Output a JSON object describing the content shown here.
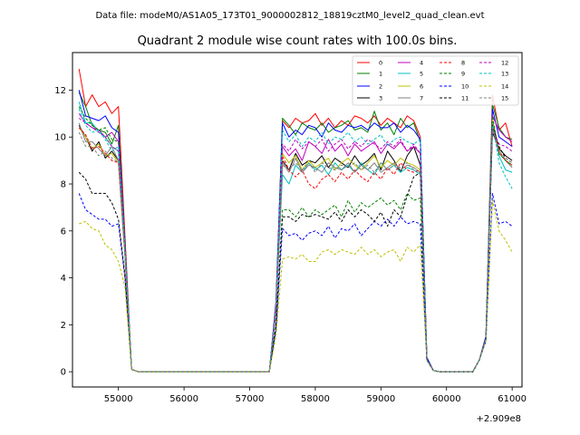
{
  "suptitle": "Data file: modeM0/AS1A05_173T01_9000002812_18819cztM0_level2_quad_clean.evt",
  "chart_data": {
    "type": "line",
    "title": "Quadrant 2 module wise count rates with 100.0s bins.",
    "xlabel": "",
    "ylabel": "",
    "x_offset_label": "+2.909e8",
    "xlim": [
      54300,
      61150
    ],
    "ylim": [
      -0.65,
      13.6
    ],
    "x_ticks": [
      55000,
      56000,
      57000,
      58000,
      59000,
      60000,
      61000
    ],
    "x_tick_labels": [
      "55000",
      "56000",
      "57000",
      "58000",
      "59000",
      "60000",
      "61000"
    ],
    "y_ticks": [
      0,
      2,
      4,
      6,
      8,
      10,
      12
    ],
    "y_tick_labels": [
      "0",
      "2",
      "4",
      "6",
      "8",
      "10",
      "12"
    ],
    "legend_position": "top-right",
    "x": [
      54400,
      54500,
      54600,
      54700,
      54800,
      54900,
      55000,
      55100,
      55200,
      55300,
      55400,
      55500,
      55600,
      55700,
      55800,
      55900,
      56000,
      56100,
      56200,
      56300,
      56400,
      56500,
      56600,
      56700,
      56800,
      56900,
      57000,
      57100,
      57200,
      57300,
      57400,
      57500,
      57600,
      57700,
      57800,
      57900,
      58000,
      58100,
      58200,
      58300,
      58400,
      58500,
      58600,
      58700,
      58800,
      58900,
      59000,
      59100,
      59200,
      59300,
      59400,
      59500,
      59600,
      59700,
      59800,
      59900,
      60000,
      60100,
      60200,
      60300,
      60400,
      60500,
      60600,
      60700,
      60800,
      60900,
      61000
    ],
    "series": [
      {
        "name": "0",
        "color": "#ff0000",
        "dash": "solid",
        "values": [
          12.9,
          11.3,
          11.8,
          11.3,
          11.5,
          11.0,
          11.3,
          5.8,
          0.1,
          0,
          0,
          0,
          0,
          0,
          0,
          0,
          0,
          0,
          0,
          0,
          0,
          0,
          0,
          0,
          0,
          0,
          0,
          0,
          0,
          0,
          3.0,
          10.7,
          10.4,
          10.8,
          10.6,
          10.7,
          11.0,
          10.5,
          10.8,
          10.4,
          10.7,
          10.5,
          10.9,
          10.8,
          10.6,
          10.9,
          10.5,
          10.8,
          10.6,
          10.4,
          10.9,
          10.7,
          10.0,
          0.6,
          0.05,
          0,
          0,
          0,
          0,
          0,
          0,
          0.5,
          1.5,
          11.8,
          10.3,
          10.6,
          9.6
        ]
      },
      {
        "name": "1",
        "color": "#008000",
        "dash": "solid",
        "values": [
          11.9,
          11.3,
          10.5,
          10.3,
          10.2,
          9.7,
          10.5,
          5.5,
          0.1,
          0,
          0,
          0,
          0,
          0,
          0,
          0,
          0,
          0,
          0,
          0,
          0,
          0,
          0,
          0,
          0,
          0,
          0,
          0,
          0,
          0,
          2.8,
          10.8,
          10.5,
          10.1,
          10.6,
          10.4,
          10.3,
          10.6,
          10.2,
          10.4,
          10.5,
          10.7,
          10.3,
          10.4,
          10.2,
          11.1,
          10.3,
          10.6,
          10.1,
          10.8,
          10.4,
          10.6,
          9.8,
          0.6,
          0.05,
          0,
          0,
          0,
          0,
          0,
          0,
          0.5,
          1.5,
          11.4,
          10.4,
          10.0,
          9.9
        ]
      },
      {
        "name": "2",
        "color": "#0000ff",
        "dash": "solid",
        "values": [
          12.0,
          10.9,
          10.8,
          10.7,
          10.9,
          10.4,
          10.2,
          5.4,
          0.1,
          0,
          0,
          0,
          0,
          0,
          0,
          0,
          0,
          0,
          0,
          0,
          0,
          0,
          0,
          0,
          0,
          0,
          0,
          0,
          0,
          0,
          2.9,
          10.6,
          10.0,
          10.3,
          10.1,
          10.5,
          10.4,
          10.0,
          10.6,
          10.3,
          10.2,
          10.5,
          10.4,
          10.5,
          10.3,
          10.6,
          10.4,
          10.4,
          10.6,
          10.2,
          10.5,
          10.3,
          9.9,
          0.6,
          0.05,
          0,
          0,
          0,
          0,
          0,
          0,
          0.5,
          1.5,
          11.2,
          10.0,
          9.8,
          9.6
        ]
      },
      {
        "name": "3",
        "color": "#000000",
        "dash": "solid",
        "values": [
          10.5,
          10.0,
          9.4,
          9.8,
          9.1,
          9.4,
          9.0,
          5.0,
          0.1,
          0,
          0,
          0,
          0,
          0,
          0,
          0,
          0,
          0,
          0,
          0,
          0,
          0,
          0,
          0,
          0,
          0,
          0,
          0,
          0,
          0,
          2.6,
          9.0,
          8.6,
          9.3,
          8.8,
          9.0,
          8.9,
          9.2,
          8.7,
          9.1,
          8.9,
          8.7,
          9.2,
          8.8,
          9.0,
          9.3,
          8.6,
          9.4,
          9.0,
          8.5,
          9.2,
          9.6,
          8.8,
          0.5,
          0.05,
          0,
          0,
          0,
          0,
          0,
          0,
          0.5,
          1.4,
          10.2,
          9.5,
          9.2,
          9.0
        ]
      },
      {
        "name": "4",
        "color": "#c000c0",
        "dash": "solid",
        "values": [
          11.0,
          10.6,
          10.4,
          10.3,
          10.0,
          10.2,
          9.8,
          5.3,
          0.1,
          0,
          0,
          0,
          0,
          0,
          0,
          0,
          0,
          0,
          0,
          0,
          0,
          0,
          0,
          0,
          0,
          0,
          0,
          0,
          0,
          0,
          2.7,
          9.6,
          9.2,
          9.5,
          9.0,
          9.8,
          9.6,
          9.3,
          9.9,
          9.4,
          9.7,
          9.2,
          9.7,
          9.4,
          9.6,
          9.8,
          9.3,
          9.7,
          9.5,
          9.8,
          9.4,
          9.6,
          9.3,
          0.5,
          0.05,
          0,
          0,
          0,
          0,
          0,
          0,
          0.5,
          1.4,
          10.9,
          10.3,
          10.0,
          9.8
        ]
      },
      {
        "name": "5",
        "color": "#00bfbf",
        "dash": "solid",
        "values": [
          11.5,
          10.6,
          10.6,
          10.2,
          10.0,
          9.6,
          9.4,
          5.2,
          0.1,
          0,
          0,
          0,
          0,
          0,
          0,
          0,
          0,
          0,
          0,
          0,
          0,
          0,
          0,
          0,
          0,
          0,
          0,
          0,
          0,
          0,
          2.6,
          8.4,
          8.0,
          8.8,
          8.5,
          8.9,
          8.6,
          8.8,
          8.4,
          8.9,
          8.6,
          8.8,
          8.5,
          8.9,
          8.6,
          8.4,
          8.9,
          8.6,
          8.8,
          8.5,
          8.7,
          8.6,
          8.4,
          0.5,
          0.05,
          0,
          0,
          0,
          0,
          0,
          0,
          0.5,
          1.4,
          10.6,
          9.2,
          8.6,
          8.5
        ]
      },
      {
        "name": "6",
        "color": "#bfbf00",
        "dash": "solid",
        "values": [
          10.4,
          10.0,
          9.5,
          9.7,
          9.2,
          9.3,
          8.9,
          4.9,
          0.1,
          0,
          0,
          0,
          0,
          0,
          0,
          0,
          0,
          0,
          0,
          0,
          0,
          0,
          0,
          0,
          0,
          0,
          0,
          0,
          0,
          0,
          2.6,
          9.3,
          8.9,
          9.2,
          8.6,
          9.0,
          8.7,
          8.9,
          9.1,
          8.6,
          8.9,
          9.1,
          8.8,
          8.6,
          8.9,
          9.2,
          8.7,
          9.0,
          8.8,
          9.1,
          8.9,
          8.8,
          8.6,
          0.5,
          0.05,
          0,
          0,
          0,
          0,
          0,
          0,
          0.5,
          1.4,
          10.8,
          9.3,
          9.0,
          8.8
        ]
      },
      {
        "name": "7",
        "color": "#808080",
        "dash": "solid",
        "values": [
          10.6,
          9.8,
          9.8,
          9.5,
          9.2,
          9.6,
          9.0,
          5.0,
          0.1,
          0,
          0,
          0,
          0,
          0,
          0,
          0,
          0,
          0,
          0,
          0,
          0,
          0,
          0,
          0,
          0,
          0,
          0,
          0,
          0,
          0,
          2.5,
          8.9,
          8.5,
          9.1,
          8.5,
          8.8,
          8.7,
          8.5,
          8.9,
          8.7,
          8.6,
          8.9,
          8.5,
          8.8,
          8.6,
          8.9,
          8.5,
          8.7,
          8.9,
          8.6,
          8.8,
          8.7,
          8.5,
          0.5,
          0.05,
          0,
          0,
          0,
          0,
          0,
          0,
          0.5,
          1.4,
          10.5,
          9.3,
          9.0,
          8.7
        ]
      },
      {
        "name": "8",
        "color": "#ff0000",
        "dash": "dashed",
        "values": [
          10.4,
          10.1,
          9.5,
          9.6,
          9.3,
          9.0,
          8.9,
          5.0,
          0.1,
          0,
          0,
          0,
          0,
          0,
          0,
          0,
          0,
          0,
          0,
          0,
          0,
          0,
          0,
          0,
          0,
          0,
          0,
          0,
          0,
          0,
          2.5,
          9.2,
          8.6,
          8.3,
          8.6,
          8.0,
          7.8,
          8.2,
          8.4,
          8.1,
          8.5,
          8.2,
          8.6,
          8.3,
          8.1,
          8.5,
          8.2,
          8.7,
          8.4,
          8.9,
          8.6,
          8.5,
          8.6,
          0.5,
          0.05,
          0,
          0,
          0,
          0,
          0,
          0,
          0.5,
          1.4,
          10.6,
          9.4,
          9.0,
          8.8
        ]
      },
      {
        "name": "9",
        "color": "#008000",
        "dash": "dashed",
        "values": [
          11.3,
          10.8,
          10.5,
          10.3,
          10.4,
          9.9,
          9.8,
          5.3,
          0.1,
          0,
          0,
          0,
          0,
          0,
          0,
          0,
          0,
          0,
          0,
          0,
          0,
          0,
          0,
          0,
          0,
          0,
          0,
          0,
          0,
          0,
          2.0,
          6.9,
          6.9,
          6.6,
          7.0,
          6.6,
          6.9,
          6.7,
          6.9,
          7.1,
          6.6,
          7.3,
          6.8,
          7.2,
          7.0,
          7.2,
          7.4,
          7.1,
          7.3,
          6.9,
          7.6,
          7.3,
          7.4,
          0.5,
          0.05,
          0,
          0,
          0,
          0,
          0,
          0,
          0.5,
          1.4,
          10.9,
          9.3,
          9.0,
          8.8
        ]
      },
      {
        "name": "10",
        "color": "#0000ff",
        "dash": "dashed",
        "values": [
          7.6,
          6.9,
          6.7,
          6.5,
          6.5,
          6.2,
          6.3,
          4.0,
          0.1,
          0,
          0,
          0,
          0,
          0,
          0,
          0,
          0,
          0,
          0,
          0,
          0,
          0,
          0,
          0,
          0,
          0,
          0,
          0,
          0,
          0,
          1.8,
          6.1,
          5.8,
          5.9,
          5.6,
          5.9,
          6.0,
          5.8,
          6.2,
          5.7,
          6.1,
          6.0,
          6.3,
          5.8,
          6.1,
          6.4,
          6.2,
          6.5,
          6.2,
          6.6,
          6.3,
          6.4,
          6.3,
          0.5,
          0.05,
          0,
          0,
          0,
          0,
          0,
          0,
          0.5,
          1.3,
          7.6,
          6.3,
          6.4,
          6.2
        ]
      },
      {
        "name": "11",
        "color": "#000000",
        "dash": "dashed",
        "values": [
          8.5,
          8.2,
          7.6,
          7.6,
          7.6,
          7.2,
          6.5,
          4.1,
          0.1,
          0,
          0,
          0,
          0,
          0,
          0,
          0,
          0,
          0,
          0,
          0,
          0,
          0,
          0,
          0,
          0,
          0,
          0,
          0,
          0,
          0,
          1.9,
          6.6,
          6.6,
          6.4,
          6.7,
          6.6,
          6.7,
          6.6,
          6.5,
          6.8,
          6.4,
          6.9,
          6.6,
          6.9,
          6.7,
          6.4,
          6.8,
          6.2,
          6.9,
          6.6,
          7.5,
          8.3,
          8.5,
          0.5,
          0.05,
          0,
          0,
          0,
          0,
          0,
          0,
          0.5,
          1.4,
          10.5,
          9.6,
          9.1,
          8.9
        ]
      },
      {
        "name": "12",
        "color": "#c000c0",
        "dash": "dashed",
        "values": [
          10.8,
          10.6,
          10.4,
          10.2,
          10.0,
          9.6,
          9.4,
          5.2,
          0.1,
          0,
          0,
          0,
          0,
          0,
          0,
          0,
          0,
          0,
          0,
          0,
          0,
          0,
          0,
          0,
          0,
          0,
          0,
          0,
          0,
          0,
          2.7,
          9.7,
          9.4,
          9.9,
          9.5,
          9.8,
          9.6,
          9.9,
          9.4,
          9.7,
          9.9,
          9.5,
          9.8,
          9.6,
          9.9,
          9.7,
          9.5,
          9.8,
          9.6,
          9.9,
          9.4,
          9.7,
          9.3,
          0.5,
          0.05,
          0,
          0,
          0,
          0,
          0,
          0,
          0.5,
          1.4,
          10.3,
          9.7,
          9.6,
          9.4
        ]
      },
      {
        "name": "13",
        "color": "#00bfbf",
        "dash": "dashed",
        "values": [
          11.2,
          10.5,
          10.2,
          10.3,
          9.9,
          9.4,
          9.6,
          5.3,
          0.1,
          0,
          0,
          0,
          0,
          0,
          0,
          0,
          0,
          0,
          0,
          0,
          0,
          0,
          0,
          0,
          0,
          0,
          0,
          0,
          0,
          0,
          2.8,
          10.3,
          9.8,
          10.1,
          9.6,
          10.0,
          9.8,
          10.2,
          9.7,
          10.0,
          9.9,
          10.2,
          9.8,
          10.0,
          9.7,
          9.9,
          10.1,
          9.6,
          9.9,
          10.0,
          9.8,
          9.7,
          9.9,
          0.5,
          0.05,
          0,
          0,
          0,
          0,
          0,
          0,
          0.5,
          1.4,
          10.6,
          8.9,
          8.3,
          7.8
        ]
      },
      {
        "name": "14",
        "color": "#bfbf00",
        "dash": "dashed",
        "values": [
          6.3,
          6.4,
          6.1,
          6.0,
          5.4,
          5.2,
          4.7,
          3.6,
          0.1,
          0,
          0,
          0,
          0,
          0,
          0,
          0,
          0,
          0,
          0,
          0,
          0,
          0,
          0,
          0,
          0,
          0,
          0,
          0,
          0,
          0,
          1.5,
          4.8,
          4.9,
          4.8,
          5.0,
          4.7,
          4.7,
          5.1,
          5.2,
          5.0,
          5.2,
          5.1,
          5.0,
          5.3,
          5.0,
          5.2,
          4.9,
          5.1,
          5.2,
          4.7,
          5.3,
          5.1,
          5.4,
          0.5,
          0.05,
          0,
          0,
          0,
          0,
          0,
          0,
          0.5,
          1.3,
          7.3,
          6.0,
          5.6,
          5.1
        ]
      },
      {
        "name": "15",
        "color": "#808080",
        "dash": "dashed",
        "values": [
          10.2,
          9.6,
          9.6,
          9.2,
          9.4,
          9.1,
          8.9,
          4.9,
          0.1,
          0,
          0,
          0,
          0,
          0,
          0,
          0,
          0,
          0,
          0,
          0,
          0,
          0,
          0,
          0,
          0,
          0,
          0,
          0,
          0,
          0,
          2.5,
          8.8,
          8.6,
          8.9,
          8.6,
          8.9,
          8.5,
          8.9,
          8.7,
          8.6,
          8.8,
          8.7,
          8.9,
          8.6,
          8.8,
          8.5,
          8.9,
          8.6,
          8.8,
          8.7,
          8.9,
          8.6,
          8.5,
          0.5,
          0.05,
          0,
          0,
          0,
          0,
          0,
          0,
          0.5,
          1.4,
          10.4,
          9.4,
          9.1,
          8.9
        ]
      }
    ]
  }
}
